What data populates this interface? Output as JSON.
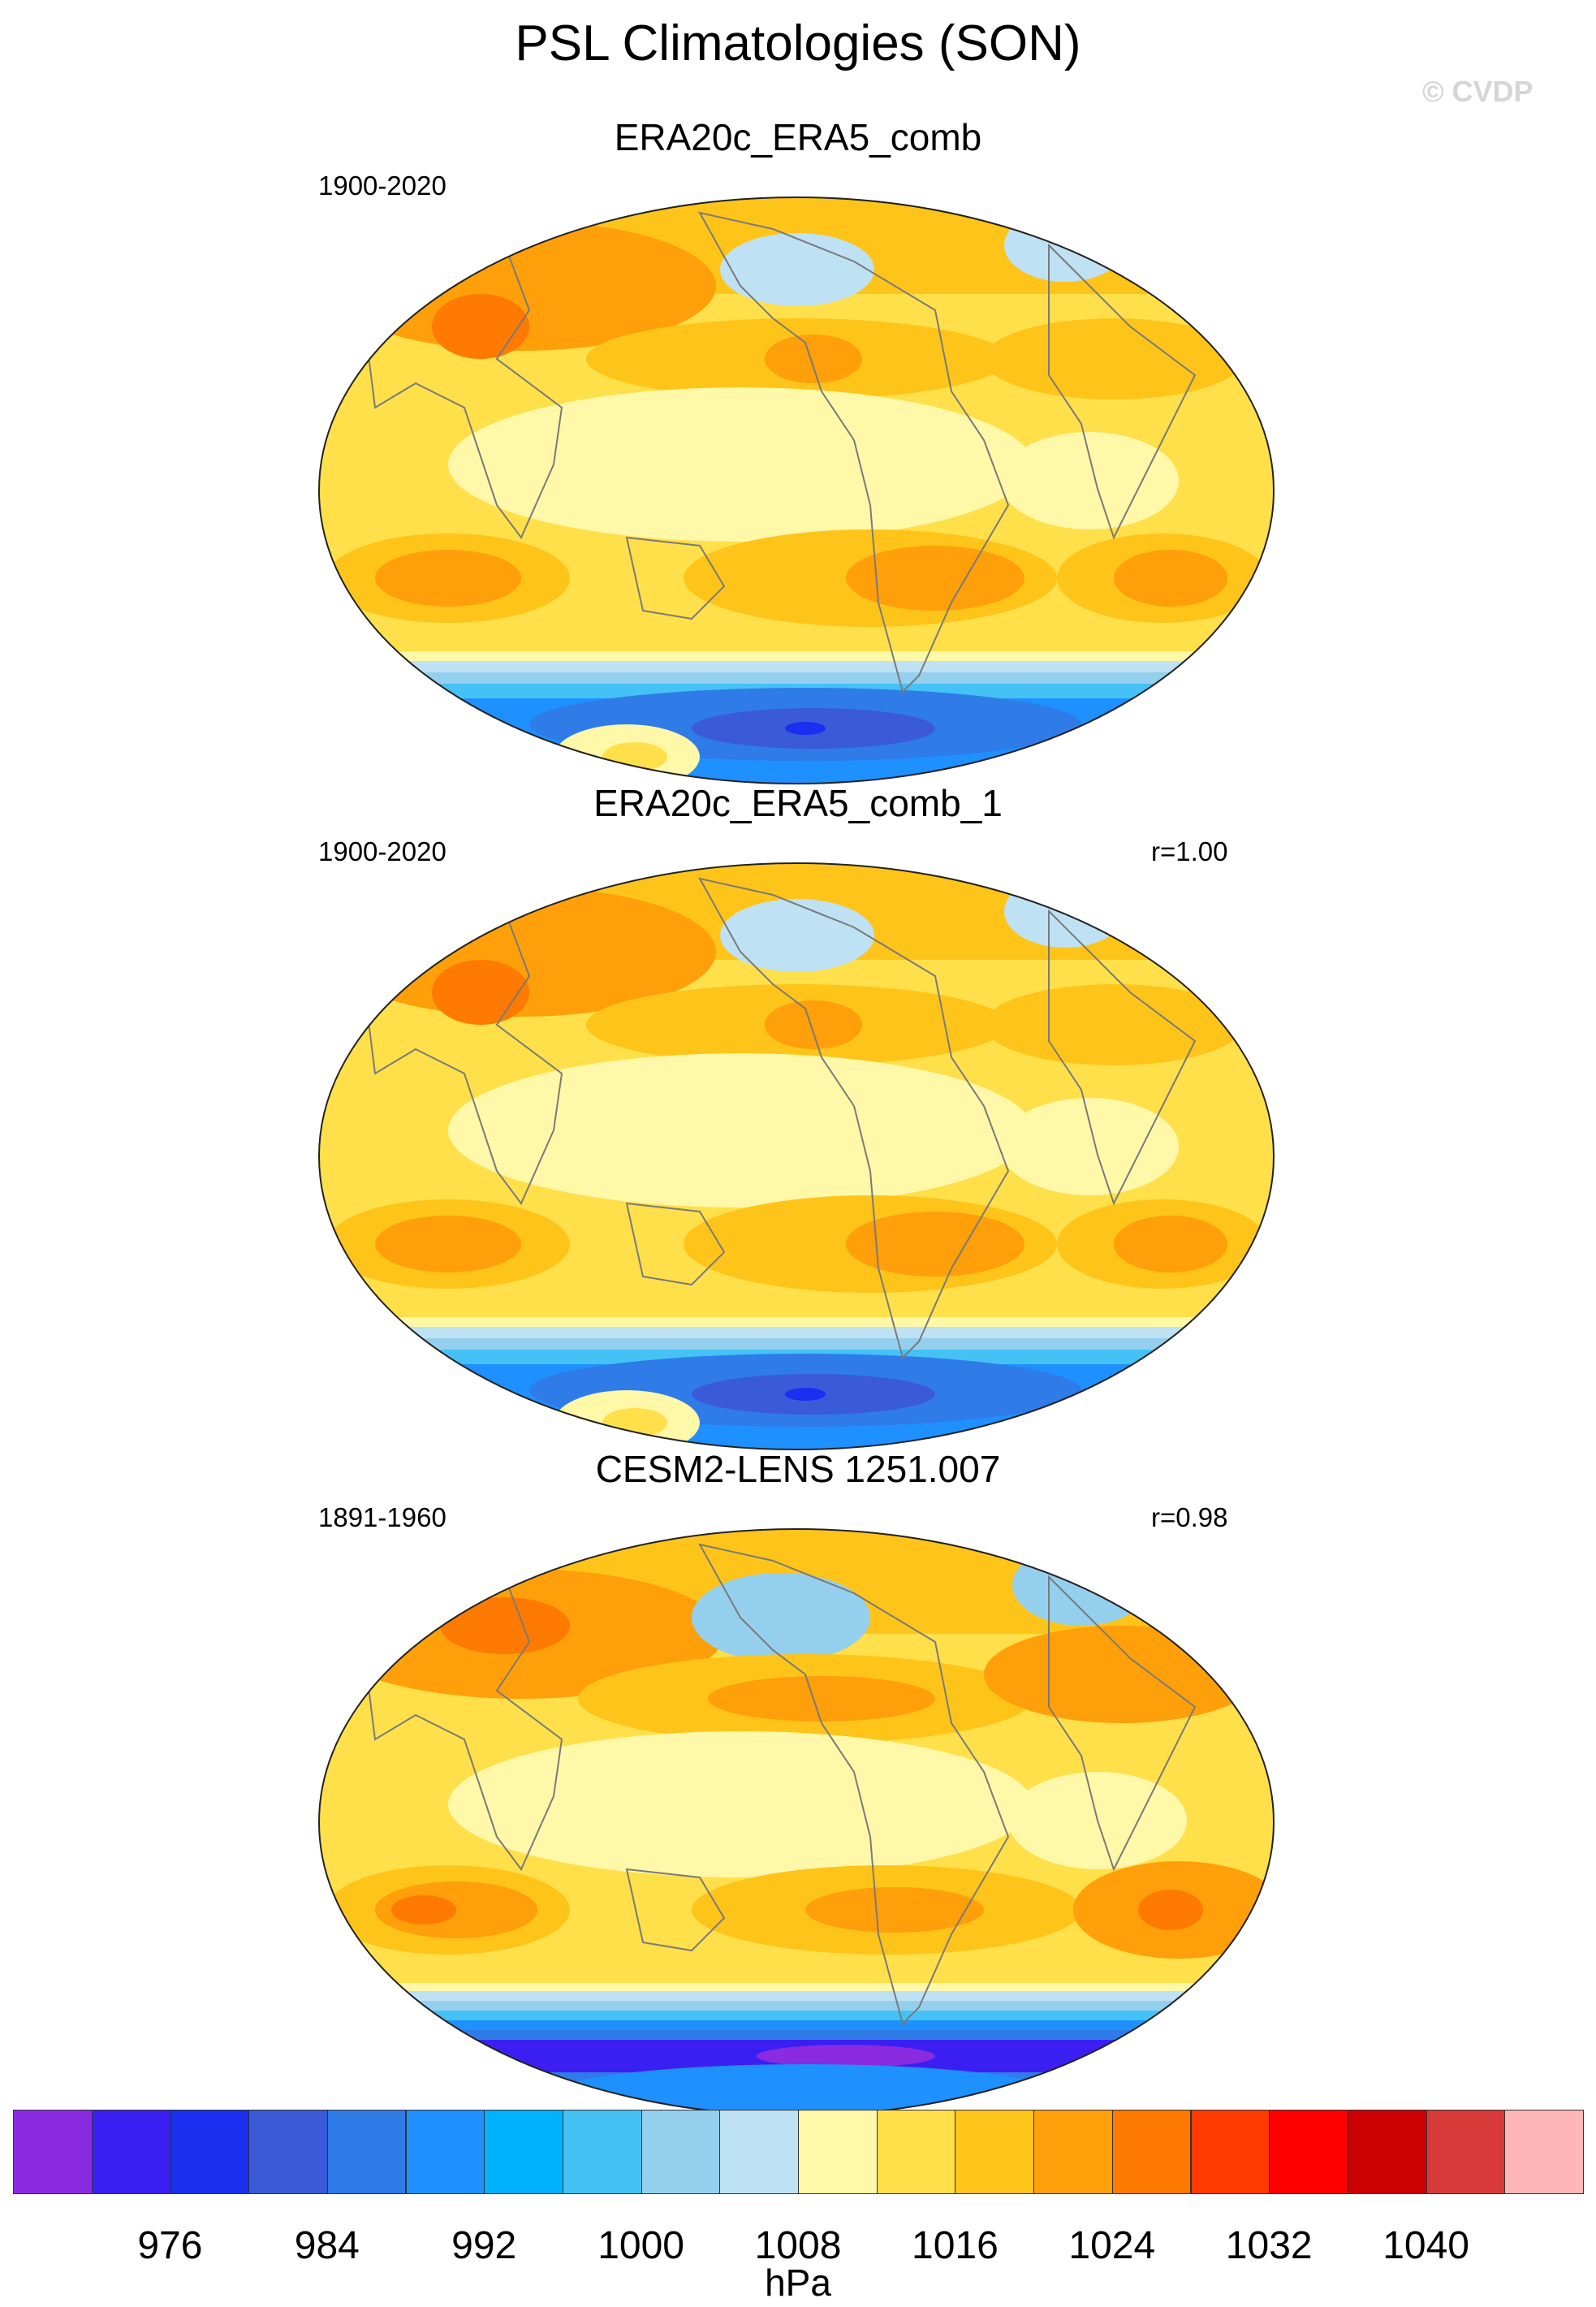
{
  "figure": {
    "title": "PSL Climatologies (SON)",
    "watermark": "© CVDP"
  },
  "panels": [
    {
      "title": "ERA20c_ERA5_comb",
      "period": "1900-2020",
      "correlation": ""
    },
    {
      "title": "ERA20c_ERA5_comb_1",
      "period": "1900-2020",
      "correlation": "r=1.00"
    },
    {
      "title": "CESM2-LENS 1251.007",
      "period": "1891-1960",
      "correlation": "r=0.98"
    }
  ],
  "colorbar": {
    "unit": "hPa",
    "tick_labels": [
      "976",
      "984",
      "992",
      "1000",
      "1008",
      "1016",
      "1024",
      "1032",
      "1040"
    ],
    "colors": [
      "#8a2be2",
      "#3b1ff2",
      "#1a2ff0",
      "#3a5ad8",
      "#2f7be8",
      "#1e90ff",
      "#00b2ff",
      "#44c2f6",
      "#95cfee",
      "#bfe1f4",
      "#fff8a8",
      "#ffe04a",
      "#ffc41a",
      "#ff9f0a",
      "#ff7a00",
      "#ff3a00",
      "#ff0000",
      "#cc0000",
      "#d83a3a",
      "#ffb6b6"
    ]
  }
}
